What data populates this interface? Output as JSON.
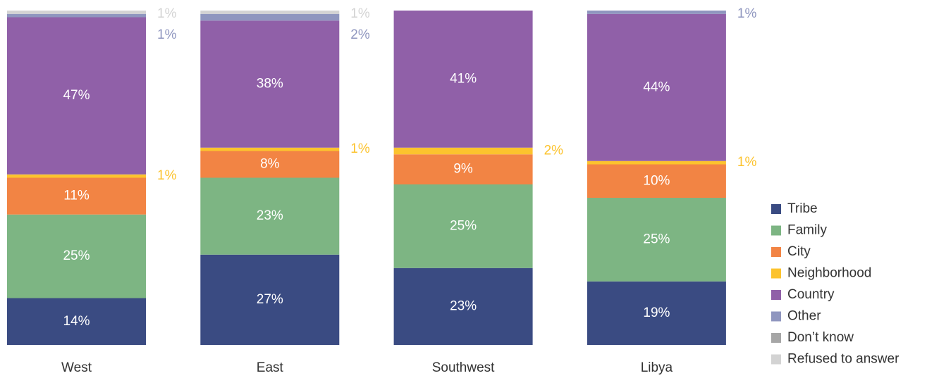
{
  "chart_data": {
    "type": "stacked_bar",
    "categories": [
      "West",
      "East",
      "Southwest",
      "Libya"
    ],
    "series": [
      {
        "name": "Tribe",
        "color": "#3a4b82",
        "values": [
          14,
          27,
          23,
          19
        ],
        "value_labels": [
          "14%",
          "27%",
          "23%",
          "19%"
        ]
      },
      {
        "name": "Family",
        "color": "#7db583",
        "values": [
          25,
          23,
          25,
          25
        ],
        "value_labels": [
          "25%",
          "23%",
          "25%",
          "25%"
        ]
      },
      {
        "name": "City",
        "color": "#f28444",
        "values": [
          11,
          8,
          9,
          10
        ],
        "value_labels": [
          "11%",
          "8%",
          "9%",
          "10%"
        ]
      },
      {
        "name": "Neighborhood",
        "color": "#fcc32e",
        "values": [
          1,
          1,
          2,
          1
        ],
        "value_labels": [
          "1%",
          "1%",
          "2%",
          "1%"
        ]
      },
      {
        "name": "Country",
        "color": "#9060a8",
        "values": [
          47,
          38,
          41,
          44
        ],
        "value_labels": [
          "47%",
          "38%",
          "41%",
          "44%"
        ]
      },
      {
        "name": "Other",
        "color": "#8f96bf",
        "values": [
          1,
          2,
          null,
          1
        ],
        "value_labels": [
          "1%",
          "2%",
          null,
          "1%"
        ]
      },
      {
        "name": "Don’t know",
        "color": "#a6a6a6",
        "values": [
          null,
          null,
          null,
          null
        ],
        "value_labels": [
          null,
          null,
          null,
          null
        ]
      },
      {
        "name": "Refused to answer",
        "color": "#d3d3d3",
        "values": [
          1,
          1,
          null,
          null
        ],
        "value_labels": [
          "1%",
          "1%",
          null,
          null
        ]
      }
    ]
  }
}
